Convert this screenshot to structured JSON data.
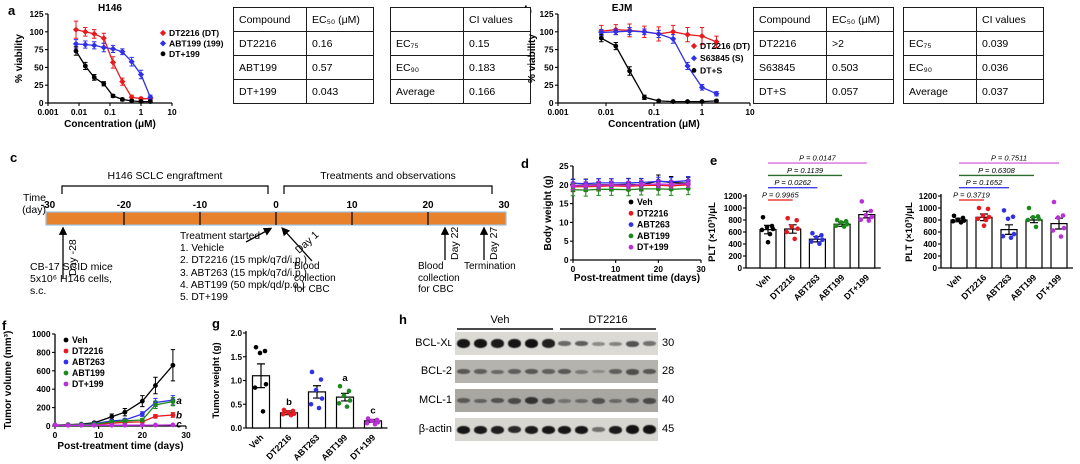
{
  "panels": {
    "a": {
      "label": "a"
    },
    "b": {
      "label": "b"
    },
    "c": {
      "label": "c"
    },
    "d": {
      "label": "d"
    },
    "e": {
      "label": "e"
    },
    "f": {
      "label": "f"
    },
    "g": {
      "label": "g"
    },
    "h": {
      "label": "h"
    }
  },
  "tables": {
    "a_ec": {
      "headers": [
        "Compound",
        "EC₅₀ (μM)"
      ],
      "rows": [
        [
          "DT2216",
          "0.16"
        ],
        [
          "ABT199",
          "0.57"
        ],
        [
          "DT+199",
          "0.043"
        ]
      ]
    },
    "a_ci": {
      "headers": [
        "",
        "CI values"
      ],
      "rows": [
        [
          "EC₇₅",
          "0.15"
        ],
        [
          "EC₉₀",
          "0.183"
        ],
        [
          "Average",
          "0.166"
        ]
      ]
    },
    "b_ec": {
      "headers": [
        "Compound",
        "EC₅₀ (μM)"
      ],
      "rows": [
        [
          "DT2216",
          ">2"
        ],
        [
          "S63845",
          "0.503"
        ],
        [
          "DT+S",
          "0.057"
        ]
      ]
    },
    "b_ci": {
      "headers": [
        "",
        "CI values"
      ],
      "rows": [
        [
          "EC₇₅",
          "0.039"
        ],
        [
          "EC₉₀",
          "0.036"
        ],
        [
          "Average",
          "0.037"
        ]
      ]
    }
  },
  "timeline": {
    "axis_label_line1": "Time",
    "axis_label_line2": "(day)",
    "ticks": [
      -30,
      -20,
      -10,
      0,
      10,
      20,
      30
    ],
    "phase1": "H146 SCLC engraftment",
    "phase2": "Treatments and observations",
    "bar_color": "#e8812c",
    "bar_border": "#9cbfdd",
    "events": {
      "engraft_day": "Day -28",
      "engraft_text": [
        "CB-17 SCID mice",
        "5x10⁶ H146 cells,",
        "s.c."
      ],
      "treatment_title": "Treatment started",
      "treatments": [
        "1. Vehicle",
        "2. DT2216 (15 mpk/q7d/i.p.)",
        "3. ABT263 (15 mpk/q7d/i.p.)",
        "4. ABT199 (50 mpk/qd/p.o.)",
        "5. DT+199"
      ],
      "day1": "Day 1",
      "day1_text": [
        "Blood",
        "collection",
        "for CBC"
      ],
      "day22": "Day 22",
      "day22_text": [
        "Blood",
        "collection",
        "for CBC"
      ],
      "day27": "Day 27",
      "day27_text": [
        "Termination"
      ]
    }
  },
  "blot": {
    "groups": [
      {
        "label": "Veh"
      },
      {
        "label": "DT2216"
      }
    ],
    "rows": [
      {
        "label": "BCL-Xʟ",
        "mw": "30",
        "bg": "#dcdad5",
        "band_heights": [
          9,
          9,
          9,
          9,
          9,
          9,
          5,
          5,
          4,
          4,
          6,
          5
        ],
        "band_intensities": [
          0.95,
          0.96,
          0.93,
          0.95,
          0.97,
          0.9,
          0.55,
          0.6,
          0.38,
          0.42,
          0.65,
          0.5
        ]
      },
      {
        "label": "BCL-2",
        "mw": "28",
        "bg": "#b5b3ae",
        "band_heights": [
          5,
          5,
          4,
          5,
          5,
          5,
          5,
          4,
          3,
          5,
          6,
          5
        ],
        "band_intensities": [
          0.55,
          0.5,
          0.45,
          0.5,
          0.55,
          0.5,
          0.55,
          0.35,
          0.25,
          0.5,
          0.6,
          0.55
        ]
      },
      {
        "label": "MCL-1",
        "mw": "40",
        "bg": "#a9a7a2",
        "band_heights": [
          5,
          4,
          5,
          6,
          7,
          6,
          4,
          4,
          6,
          4,
          5,
          6
        ],
        "band_intensities": [
          0.5,
          0.45,
          0.55,
          0.6,
          0.75,
          0.6,
          0.35,
          0.4,
          0.55,
          0.4,
          0.5,
          0.6
        ]
      },
      {
        "label": "β-actin",
        "mw": "45",
        "bg": "#d8d6d1",
        "band_heights": [
          8,
          8,
          8,
          7,
          8,
          8,
          8,
          8,
          5,
          8,
          9,
          9
        ],
        "band_intensities": [
          0.95,
          0.93,
          0.9,
          0.85,
          0.92,
          0.95,
          0.95,
          0.95,
          0.5,
          0.92,
          0.97,
          0.97
        ]
      }
    ]
  },
  "chart_data": [
    {
      "id": "a",
      "type": "line",
      "title": "H146",
      "xscale": "log",
      "xlabel": "Concentration (μM)",
      "ylabel": "% viability",
      "xticks": [
        0.001,
        0.01,
        0.1,
        1,
        10
      ],
      "xtick_labels": [
        "0.001",
        "0.01",
        "0.1",
        "1",
        "10"
      ],
      "ylim": [
        0,
        125
      ],
      "yticks": [
        0,
        25,
        50,
        75,
        100,
        125
      ],
      "x": [
        0.008,
        0.016,
        0.031,
        0.063,
        0.125,
        0.25,
        0.5,
        1,
        2
      ],
      "series": [
        {
          "name": "DT2216 (DT)",
          "color": "#e8191f",
          "marker": "diamond",
          "values": [
            103,
            100,
            97,
            91,
            57,
            30,
            8,
            6,
            6
          ],
          "err": [
            12,
            6,
            6,
            7,
            8,
            5,
            3,
            2,
            2
          ]
        },
        {
          "name": "ABT199 (199)",
          "color": "#3030e8",
          "marker": "diamond",
          "values": [
            83,
            82,
            81,
            78,
            76,
            72,
            58,
            40,
            8
          ],
          "err": [
            6,
            5,
            5,
            6,
            5,
            4,
            6,
            6,
            3
          ]
        },
        {
          "name": "DT+199",
          "color": "#000000",
          "marker": "circle",
          "values": [
            73,
            52,
            36,
            27,
            10,
            5,
            3,
            2,
            2
          ],
          "err": [
            6,
            5,
            4,
            3,
            2,
            2,
            1,
            1,
            1
          ]
        }
      ]
    },
    {
      "id": "b",
      "type": "line",
      "title": "EJM",
      "xscale": "log",
      "xlabel": "Concentration (μM)",
      "ylabel": "% viability",
      "xticks": [
        0.001,
        0.01,
        0.1,
        1,
        10
      ],
      "xtick_labels": [
        "0.001",
        "0.01",
        "0.1",
        "1",
        "10"
      ],
      "ylim": [
        0,
        125
      ],
      "yticks": [
        0,
        25,
        50,
        75,
        100,
        125
      ],
      "x": [
        0.008,
        0.016,
        0.031,
        0.063,
        0.125,
        0.25,
        0.5,
        1,
        2
      ],
      "series": [
        {
          "name": "DT2216 (DT)",
          "color": "#e8191f",
          "marker": "diamond",
          "values": [
            101,
            103,
            102,
            100,
            97,
            100,
            96,
            94,
            86
          ],
          "err": [
            8,
            7,
            9,
            8,
            10,
            9,
            10,
            12,
            8
          ]
        },
        {
          "name": "S63845 (S)",
          "color": "#3030e8",
          "marker": "diamond",
          "values": [
            99,
            100,
            101,
            100,
            97,
            90,
            52,
            22,
            13
          ],
          "err": [
            4,
            4,
            5,
            4,
            5,
            6,
            5,
            4,
            3
          ]
        },
        {
          "name": "DT+S",
          "color": "#000000",
          "marker": "circle",
          "values": [
            91,
            80,
            45,
            8,
            3,
            2,
            2,
            2,
            3
          ],
          "err": [
            5,
            5,
            6,
            3,
            1,
            1,
            1,
            1,
            1
          ]
        }
      ]
    },
    {
      "id": "d",
      "type": "line",
      "xscale": "linear",
      "xlabel": "Post-treatment time (days)",
      "ylabel": "Body weight (g)",
      "xlim": [
        0,
        30
      ],
      "xticks": [
        0,
        10,
        20,
        30
      ],
      "xtick_labels": [
        "0",
        "10",
        "20",
        "30"
      ],
      "ylim": [
        0,
        25
      ],
      "yticks": [
        0,
        5,
        10,
        15,
        20,
        25
      ],
      "x": [
        0,
        3,
        6,
        9,
        13,
        16,
        20,
        23,
        27
      ],
      "series": [
        {
          "name": "Veh",
          "color": "#000000",
          "marker": "circle",
          "values": [
            19.8,
            19.9,
            20,
            20,
            20.1,
            20,
            21,
            20.6,
            20.4
          ],
          "err": 1.6
        },
        {
          "name": "DT2216",
          "color": "#e8191f",
          "marker": "circle",
          "values": [
            19.5,
            19.5,
            19.6,
            19.7,
            19.6,
            19.8,
            19.9,
            19.7,
            20
          ],
          "err": 1.2
        },
        {
          "name": "ABT263",
          "color": "#3030e8",
          "marker": "circle",
          "values": [
            20.4,
            20.3,
            20.5,
            20.5,
            20.5,
            20.6,
            20.9,
            20.8,
            21.1
          ],
          "err": 1.1
        },
        {
          "name": "ABT199",
          "color": "#1b8a1b",
          "marker": "circle",
          "values": [
            18.7,
            18.6,
            18.8,
            18.8,
            18.7,
            18.9,
            18.9,
            18.8,
            19
          ],
          "err": 1.6
        },
        {
          "name": "DT+199",
          "color": "#bb2fd9",
          "marker": "circle",
          "values": [
            19.7,
            19.8,
            19.9,
            20,
            19.9,
            20.1,
            20.2,
            20.1,
            20.3
          ],
          "err": 1.0
        }
      ]
    },
    {
      "id": "e1",
      "type": "bar",
      "ylabel": "PLT (×10³)/μL",
      "ylim": [
        0,
        1200
      ],
      "yticks": [
        0,
        200,
        400,
        600,
        800,
        1000,
        1200
      ],
      "categories": [
        "Veh",
        "DT2216",
        "ABT263",
        "ABT199",
        "DT+199"
      ],
      "values": [
        640,
        650,
        480,
        730,
        890
      ],
      "errors": [
        70,
        70,
        45,
        35,
        55
      ],
      "dot_colors": [
        "#000000",
        "#e8191f",
        "#3030e8",
        "#1b8a1b",
        "#bb2fd9"
      ],
      "dots": [
        [
          845,
          700,
          680,
          650,
          635,
          565,
          430
        ],
        [
          830,
          795,
          690,
          655,
          600,
          485
        ],
        [
          580,
          545,
          510,
          470,
          440,
          405
        ],
        [
          800,
          780,
          760,
          730,
          705,
          690
        ],
        [
          1110,
          950,
          880,
          850,
          805,
          790
        ]
      ],
      "brackets": [
        {
          "label": "P = 0.9965",
          "color": "#e8403f",
          "to": 1
        },
        {
          "label": "P = 0.0262",
          "color": "#4040e8",
          "to": 2
        },
        {
          "label": "P = 0.1139",
          "color": "#2e6b2e",
          "to": 3
        },
        {
          "label": "P = 0.0147",
          "color": "#d46fe0",
          "to": 4
        }
      ]
    },
    {
      "id": "e2",
      "type": "bar",
      "ylabel": "PLT (×10³)/μL",
      "ylim": [
        0,
        1200
      ],
      "yticks": [
        0,
        200,
        400,
        600,
        800,
        1000,
        1200
      ],
      "categories": [
        "Veh",
        "DT2216",
        "ABT263",
        "ABT199",
        "DT+199"
      ],
      "values": [
        800,
        845,
        640,
        800,
        740
      ],
      "errors": [
        30,
        55,
        80,
        45,
        90
      ],
      "dot_colors": [
        "#000000",
        "#e8191f",
        "#3030e8",
        "#1b8a1b",
        "#bb2fd9"
      ],
      "dots": [
        [
          870,
          835,
          805,
          790,
          780,
          760
        ],
        [
          1000,
          985,
          875,
          850,
          820,
          800,
          705
        ],
        [
          960,
          855,
          820,
          565,
          530,
          505
        ],
        [
          1000,
          860,
          845,
          815,
          800,
          685
        ],
        [
          1100,
          875,
          840,
          665,
          625,
          525
        ]
      ],
      "brackets": [
        {
          "label": "P = 0.3719",
          "color": "#e8403f",
          "to": 1
        },
        {
          "label": "P = 0.1652",
          "color": "#4040e8",
          "to": 2
        },
        {
          "label": "P = 0.6308",
          "color": "#2e6b2e",
          "to": 3
        },
        {
          "label": "P = 0.7511",
          "color": "#d46fe0",
          "to": 4
        }
      ]
    },
    {
      "id": "f",
      "type": "line",
      "xscale": "linear",
      "xlabel": "Post-treatment time (days)",
      "ylabel": "Tumor volume (mm³)",
      "xlim": [
        0,
        30
      ],
      "xticks": [
        0,
        10,
        20,
        30
      ],
      "xtick_labels": [
        "0",
        "10",
        "20",
        "30"
      ],
      "ylim": [
        0,
        1000
      ],
      "yticks": [
        0,
        200,
        400,
        600,
        800,
        1000
      ],
      "x": [
        0,
        3,
        6,
        9,
        13,
        16,
        20,
        23,
        27
      ],
      "series": [
        {
          "name": "Veh",
          "color": "#000000",
          "marker": "circle",
          "values": [
            10,
            15,
            20,
            35,
            100,
            150,
            270,
            440,
            660
          ],
          "err": [
            3,
            4,
            5,
            10,
            30,
            40,
            60,
            90,
            170
          ]
        },
        {
          "name": "DT2216",
          "color": "#e8191f",
          "marker": "circle",
          "values": [
            10,
            10,
            12,
            15,
            30,
            40,
            45,
            105,
            120
          ],
          "err": [
            3,
            3,
            3,
            4,
            8,
            10,
            10,
            20,
            25
          ]
        },
        {
          "name": "ABT263",
          "color": "#3030e8",
          "marker": "circle",
          "values": [
            10,
            12,
            15,
            25,
            55,
            65,
            130,
            255,
            280
          ],
          "err": [
            3,
            3,
            4,
            6,
            12,
            15,
            25,
            45,
            50
          ]
        },
        {
          "name": "ABT199",
          "color": "#1b8a1b",
          "marker": "circle",
          "values": [
            10,
            12,
            14,
            20,
            45,
            55,
            65,
            230,
            265
          ],
          "err": [
            3,
            3,
            4,
            5,
            10,
            12,
            15,
            40,
            45
          ]
        },
        {
          "name": "DT+199",
          "color": "#bb2fd9",
          "marker": "circle",
          "values": [
            10,
            8,
            8,
            8,
            9,
            9,
            10,
            10,
            12
          ],
          "err": [
            2,
            2,
            2,
            2,
            2,
            2,
            2,
            3,
            3
          ]
        }
      ],
      "annotations": [
        {
          "text": "a",
          "x": 28.4,
          "y": 270
        },
        {
          "text": "b",
          "x": 28.4,
          "y": 115
        },
        {
          "text": "c",
          "x": 28.4,
          "y": 18
        }
      ]
    },
    {
      "id": "g",
      "type": "bar",
      "ylabel": "Tumor weight (g)",
      "ylim": [
        0,
        2
      ],
      "yticks": [
        0,
        0.5,
        1,
        1.5,
        2
      ],
      "ytick_labels": [
        "0.0",
        "0.5",
        "1.0",
        "1.5",
        "2.0"
      ],
      "categories": [
        "Veh",
        "DT2216",
        "ABT263",
        "ABT199",
        "DT+199"
      ],
      "values": [
        1.1,
        0.32,
        0.76,
        0.65,
        0.15
      ],
      "errors": [
        0.25,
        0.04,
        0.13,
        0.08,
        0.03
      ],
      "dot_colors": [
        "#000000",
        "#e8191f",
        "#3030e8",
        "#1b8a1b",
        "#bb2fd9"
      ],
      "dots": [
        [
          1.7,
          1.62,
          1.58,
          0.92,
          0.85,
          0.35
        ],
        [
          0.38,
          0.36,
          0.33,
          0.3,
          0.29,
          0.27
        ],
        [
          1.18,
          1.02,
          0.8,
          0.62,
          0.5,
          0.42
        ],
        [
          0.88,
          0.78,
          0.68,
          0.58,
          0.52,
          0.45
        ],
        [
          0.2,
          0.17,
          0.15,
          0.12,
          0.1,
          0.08
        ]
      ],
      "letters": [
        null,
        "b",
        null,
        "a",
        "c"
      ]
    }
  ]
}
